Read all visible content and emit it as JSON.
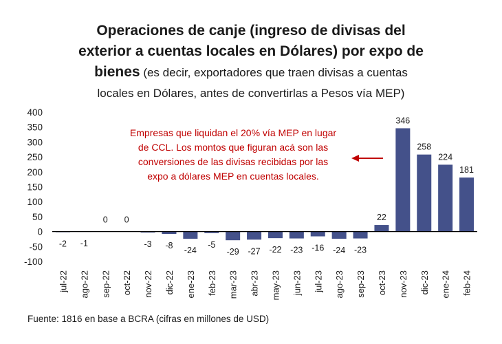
{
  "title": {
    "line1": "Operaciones de canje (ingreso de divisas del",
    "line2": "exterior a cuentas locales en Dólares) por expo de",
    "line3_bold": "bienes",
    "line3_rest": " (es decir, exportadores que traen divisas a cuentas",
    "line4": "locales en Dólares, antes de convertirlas a Pesos vía MEP)"
  },
  "annotation": {
    "lines": [
      "Empresas que liquidan el 20% vía MEP en lugar",
      "de CCL. Los montos que figuran acá son las",
      "conversiones de las divisas recibidas por las",
      "expo a dólares MEP en cuentas locales."
    ],
    "color": "#c00000"
  },
  "source": "Fuente: 1816 en base a BCRA (cifras en millones de USD)",
  "chart_data": {
    "type": "bar",
    "categories": [
      "jul-22",
      "ago-22",
      "sep-22",
      "oct-22",
      "nov-22",
      "dic-22",
      "ene-23",
      "feb-23",
      "mar-23",
      "abr-23",
      "may-23",
      "jun-23",
      "jul-23",
      "ago-23",
      "sep-23",
      "oct-23",
      "nov-23",
      "dic-23",
      "ene-24",
      "feb-24"
    ],
    "values": [
      -2,
      -1,
      0,
      0,
      -3,
      -8,
      -24,
      -5,
      -29,
      -27,
      -22,
      -23,
      -16,
      -24,
      -23,
      22,
      346,
      258,
      224,
      181
    ],
    "ylim": [
      -100,
      400
    ],
    "yticks": [
      -100,
      -50,
      0,
      50,
      100,
      150,
      200,
      250,
      300,
      350,
      400
    ],
    "bar_color": "#44518a",
    "grid": false,
    "legend": "none"
  }
}
